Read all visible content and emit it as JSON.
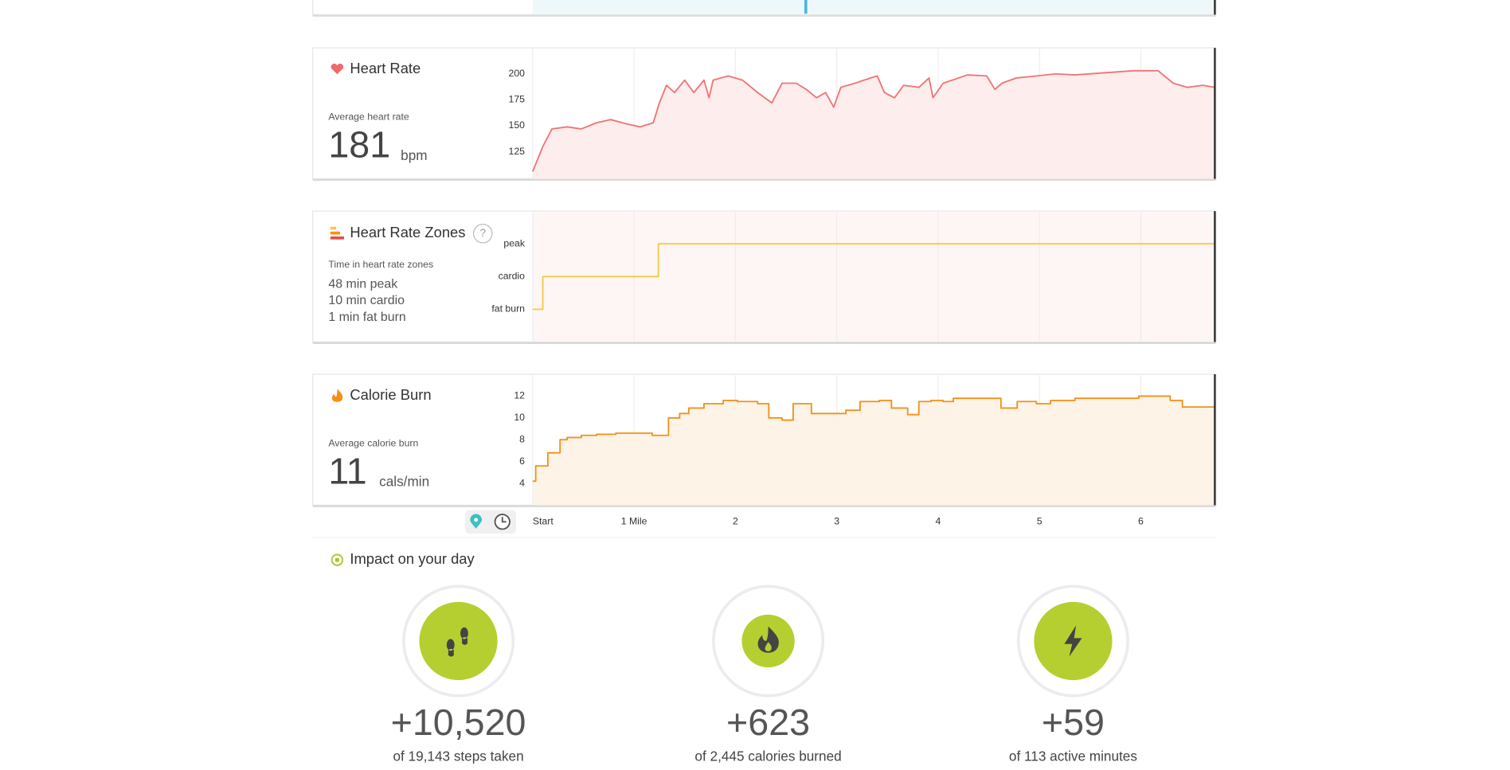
{
  "chart_data": [
    {
      "type": "line",
      "title": "Heart Rate",
      "summary_label": "Average heart rate",
      "summary_value": 181,
      "unit": "bpm",
      "color": "#f07474",
      "area": true,
      "area_color": "#fdeded",
      "x": [
        0,
        0.1,
        0.19,
        0.34,
        0.48,
        0.63,
        0.77,
        0.92,
        1.06,
        1.19,
        1.25,
        1.32,
        1.4,
        1.5,
        1.59,
        1.69,
        1.74,
        1.78,
        1.93,
        2.07,
        2.22,
        2.36,
        2.46,
        2.6,
        2.7,
        2.8,
        2.89,
        2.97,
        3.04,
        3.18,
        3.33,
        3.4,
        3.47,
        3.57,
        3.66,
        3.81,
        3.91,
        3.95,
        4.05,
        4.29,
        4.48,
        4.56,
        4.63,
        4.77,
        4.97,
        5.16,
        5.35,
        5.64,
        5.93,
        6.17,
        6.32,
        6.46,
        6.61,
        6.73
      ],
      "values": [
        106,
        130,
        147,
        149,
        147,
        153,
        156,
        152,
        149,
        153,
        172,
        189,
        182,
        194,
        182,
        194,
        177,
        194,
        198,
        194,
        182,
        172,
        191,
        191,
        185,
        177,
        182,
        168,
        187,
        191,
        196,
        198,
        182,
        177,
        189,
        187,
        196,
        177,
        191,
        199,
        198,
        185,
        191,
        196,
        198,
        200,
        199,
        201,
        203,
        203,
        191,
        187,
        189,
        187
      ],
      "xlim": [
        0,
        6.73
      ],
      "ylim": [
        99,
        225
      ],
      "yticks": [
        125,
        150,
        175,
        200
      ]
    },
    {
      "type": "line",
      "title": "Heart Rate Zones",
      "help": "?",
      "summary_label": "Time in heart rate zones",
      "summary_lines": [
        "48 min peak",
        "10 min cardio",
        "1 min fat burn"
      ],
      "color": "#f2c94c",
      "step": "after",
      "area": false,
      "background": "#fdf6f4",
      "x": [
        0,
        0.1,
        1.24,
        6.73
      ],
      "values": [
        1,
        2,
        3,
        3
      ],
      "xlim": [
        0,
        6.73
      ],
      "ylim": [
        0,
        4
      ],
      "yticks": [
        {
          "value": 1,
          "label": "fat burn"
        },
        {
          "value": 2,
          "label": "cardio"
        },
        {
          "value": 3,
          "label": "peak"
        }
      ]
    },
    {
      "type": "line",
      "title": "Calorie Burn",
      "summary_label": "Average calorie burn",
      "summary_value": 11,
      "unit": "cals/min",
      "color": "#f39019",
      "step": "after",
      "area": true,
      "area_color": "#fdf3e6",
      "x": [
        0,
        0.03,
        0.15,
        0.27,
        0.34,
        0.48,
        0.63,
        0.82,
        1.18,
        1.34,
        1.45,
        1.54,
        1.69,
        1.88,
        2.02,
        2.22,
        2.33,
        2.46,
        2.57,
        2.75,
        3.09,
        3.23,
        3.42,
        3.54,
        3.7,
        3.81,
        3.93,
        4.05,
        4.15,
        4.62,
        4.78,
        4.97,
        5.11,
        5.35,
        5.98,
        6.29,
        6.41,
        6.73
      ],
      "values": [
        4.2,
        5.6,
        6.8,
        8,
        8.2,
        8.4,
        8.5,
        8.6,
        8.4,
        10,
        10.4,
        10.9,
        11.3,
        11.6,
        11.5,
        11.3,
        10,
        9.8,
        11.3,
        10.4,
        10.7,
        11.5,
        11.6,
        10.9,
        10.3,
        11.5,
        11.6,
        11.5,
        11.8,
        10.9,
        11.5,
        11.3,
        11.6,
        11.8,
        12,
        11.6,
        11,
        11
      ],
      "xlim": [
        0,
        6.73
      ],
      "ylim": [
        2,
        14
      ],
      "yticks": [
        4,
        6,
        8,
        10,
        12
      ],
      "xticks": [
        {
          "value": 0,
          "label": "Start"
        },
        {
          "value": 1,
          "label": "1 Mile"
        },
        2,
        3,
        4,
        5,
        6
      ]
    }
  ],
  "impact": {
    "title": "Impact on your day",
    "items": [
      {
        "value": "+10,520",
        "caption": "of 19,143 steps taken"
      },
      {
        "value": "+623",
        "caption": "of 2,445 calories burned"
      },
      {
        "value": "+59",
        "caption": "of 113 active minutes"
      }
    ]
  }
}
